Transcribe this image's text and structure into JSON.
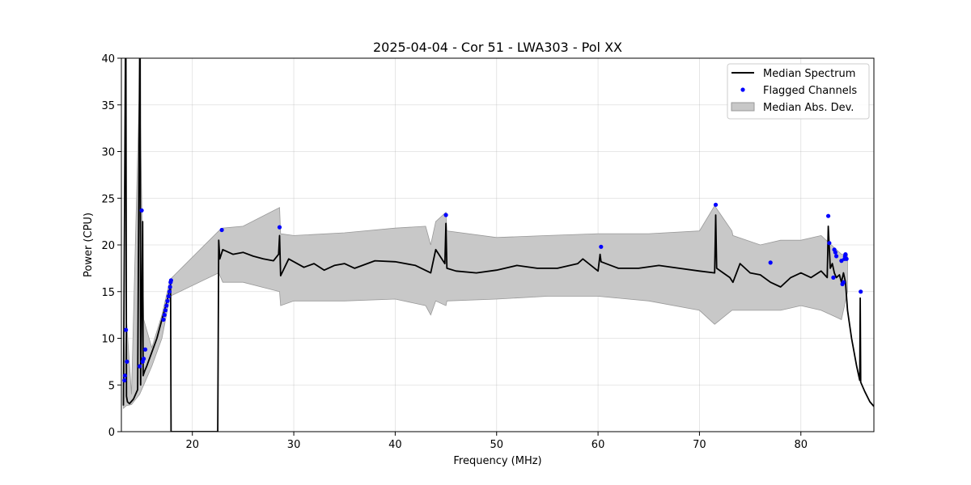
{
  "chart_data": {
    "type": "line",
    "title": "2025-04-04 - Cor 51 - LWA303 - Pol XX",
    "xlabel": "Frequency (MHz)",
    "ylabel": "Power (CPU)",
    "xlim": [
      13.0,
      87.2
    ],
    "ylim": [
      0,
      40
    ],
    "xticks": [
      20,
      30,
      40,
      50,
      60,
      70,
      80
    ],
    "yticks": [
      0,
      5,
      10,
      15,
      20,
      25,
      30,
      35,
      40
    ],
    "grid": true,
    "legend": {
      "position": "top-right",
      "entries": [
        "Median Spectrum",
        "Flagged Channels",
        "Median Abs. Dev."
      ]
    },
    "colors": {
      "median": "#000000",
      "flagged": "#0000ff",
      "mad_fill": "#c8c8c8",
      "mad_edge": "#999999"
    },
    "median_spectrum": {
      "x": [
        13.2,
        13.4,
        13.45,
        13.5,
        13.6,
        13.8,
        14.2,
        14.6,
        14.8,
        14.85,
        14.9,
        15.1,
        15.15,
        15.2,
        15.3,
        15.5,
        16.0,
        16.5,
        17.0,
        17.5,
        17.8,
        17.85,
        17.9,
        20.0,
        22.5,
        22.6,
        22.7,
        23.0,
        24.0,
        25.0,
        26.0,
        27.0,
        28.0,
        28.5,
        28.6,
        28.7,
        29.5,
        31.0,
        32.0,
        33.0,
        34.0,
        35.0,
        36.0,
        38.0,
        40.0,
        42.0,
        43.5,
        44.0,
        44.9,
        45.0,
        45.1,
        46.0,
        48.0,
        50.0,
        52.0,
        54.0,
        56.0,
        58.0,
        58.5,
        60.0,
        60.2,
        60.3,
        62.0,
        64.0,
        66.0,
        68.0,
        70.0,
        71.5,
        71.6,
        71.7,
        73.0,
        73.3,
        74.0,
        75.0,
        76.0,
        77.0,
        78.0,
        79.0,
        80.0,
        81.0,
        82.0,
        82.6,
        82.7,
        82.9,
        83.1,
        83.3,
        83.5,
        83.8,
        84.0,
        84.2,
        84.4,
        84.6,
        85.0,
        85.5,
        85.8,
        85.85,
        85.9,
        86.3,
        86.8,
        87.2
      ],
      "y": [
        2.8,
        40,
        40,
        3.8,
        3.2,
        3.0,
        3.5,
        4.5,
        40,
        40,
        5.0,
        22.5,
        6.0,
        6.2,
        6.5,
        7.0,
        8.5,
        10.0,
        12.0,
        14.0,
        15.5,
        15.8,
        0,
        0,
        0,
        20.5,
        18.5,
        19.5,
        19.0,
        19.2,
        18.8,
        18.5,
        18.3,
        19.0,
        21.0,
        16.7,
        18.5,
        17.6,
        18.0,
        17.3,
        17.8,
        18.0,
        17.5,
        18.3,
        18.2,
        17.8,
        17.0,
        19.5,
        18.0,
        22.3,
        17.5,
        17.2,
        17.0,
        17.3,
        17.8,
        17.5,
        17.5,
        18.0,
        18.5,
        17.2,
        19.0,
        18.2,
        17.5,
        17.5,
        17.8,
        17.5,
        17.2,
        17.0,
        23.2,
        17.5,
        16.5,
        16.0,
        18.0,
        17.0,
        16.8,
        16.0,
        15.5,
        16.5,
        17.0,
        16.5,
        17.2,
        16.5,
        22.0,
        17.5,
        18.0,
        17.0,
        16.5,
        16.8,
        16.0,
        17.0,
        16.0,
        13.0,
        10.0,
        7.0,
        5.5,
        14.3,
        5.3,
        4.3,
        3.2,
        2.7
      ]
    },
    "mad_band": {
      "x": [
        13.2,
        13.5,
        14.0,
        14.8,
        15.2,
        16.0,
        17.0,
        17.8,
        22.6,
        23.0,
        25.0,
        28.6,
        28.7,
        30.0,
        35.0,
        40.0,
        43.0,
        43.5,
        44.0,
        45.0,
        45.1,
        50.0,
        55.0,
        60.0,
        65.0,
        70.0,
        71.5,
        73.2,
        73.3,
        76.0,
        78.0,
        80.0,
        82.0,
        83.0,
        84.0,
        84.6
      ],
      "upper": [
        3.5,
        12.0,
        4.0,
        38.0,
        12.0,
        9.0,
        12.5,
        16.3,
        21.5,
        21.8,
        22.0,
        24.0,
        21.2,
        21.0,
        21.3,
        21.8,
        22.0,
        20.0,
        22.5,
        23.5,
        21.5,
        20.8,
        21.0,
        21.2,
        21.2,
        21.5,
        24.2,
        21.5,
        21.0,
        20.0,
        20.5,
        20.5,
        21.0,
        20.0,
        19.0,
        19.0
      ],
      "lower": [
        2.5,
        2.8,
        2.9,
        4.0,
        5.0,
        7.0,
        10.0,
        14.5,
        17.0,
        16.0,
        16.0,
        15.0,
        13.5,
        14.0,
        14.0,
        14.2,
        13.5,
        12.5,
        14.0,
        13.5,
        14.0,
        14.2,
        14.5,
        14.5,
        14.0,
        13.0,
        11.5,
        13.0,
        13.0,
        13.0,
        13.0,
        13.5,
        13.0,
        12.5,
        12.0,
        15.0
      ]
    },
    "flagged_channels": {
      "x": [
        13.3,
        13.35,
        13.45,
        13.55,
        14.8,
        15.0,
        15.1,
        15.2,
        15.35,
        17.15,
        17.25,
        17.35,
        17.45,
        17.55,
        17.65,
        17.75,
        17.8,
        17.85,
        17.9,
        22.9,
        28.6,
        45.0,
        60.3,
        71.6,
        77.0,
        82.7,
        82.8,
        83.2,
        83.3,
        83.4,
        83.5,
        84.0,
        84.1,
        84.2,
        84.3,
        84.35,
        84.4,
        84.5,
        85.9
      ],
      "y": [
        5.5,
        6.0,
        10.9,
        7.5,
        7.0,
        23.7,
        7.5,
        7.8,
        8.8,
        12.0,
        12.5,
        13.0,
        13.5,
        14.0,
        14.5,
        15.0,
        15.5,
        16.0,
        16.2,
        21.6,
        21.9,
        23.2,
        19.8,
        24.3,
        18.1,
        23.1,
        20.2,
        16.5,
        19.5,
        19.2,
        18.8,
        18.3,
        15.8,
        16.0,
        18.5,
        18.8,
        19.0,
        18.5,
        15.0
      ]
    }
  }
}
